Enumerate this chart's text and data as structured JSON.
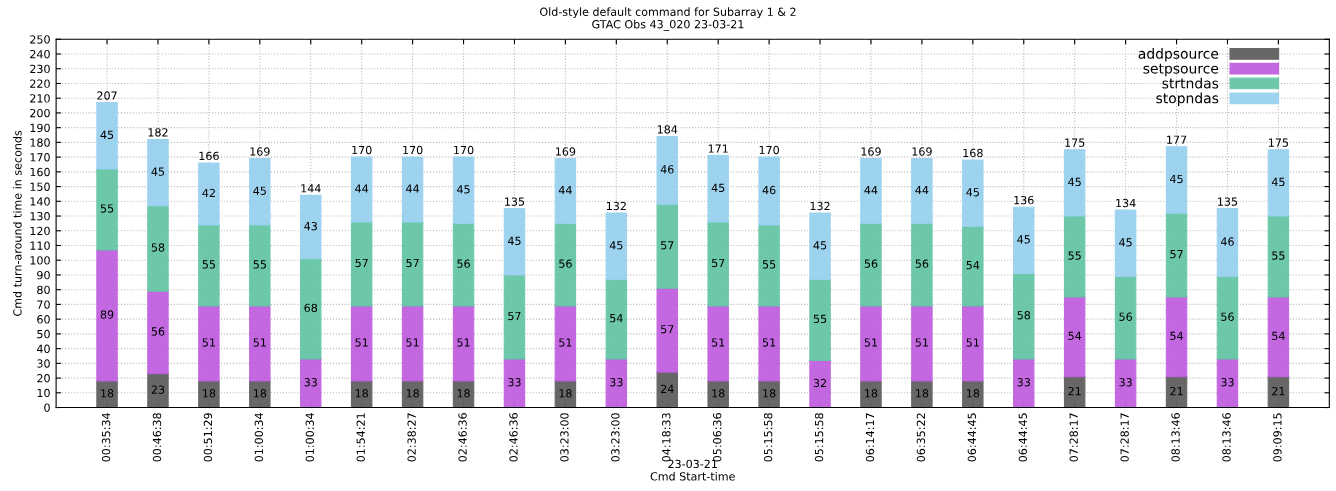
{
  "chart_data": {
    "type": "bar",
    "stacked": true,
    "title": "Old-style default command for Subarray 1 & 2",
    "subtitle": "GTAC Obs 43_020 23-03-21",
    "xlabel": "23-03-21\nCmd Start-time",
    "ylabel": "Cmd turn-around time in seconds",
    "categories": [
      "00:35:34",
      "00:46:38",
      "00:51:29",
      "01:00:34",
      "01:00:34",
      "01:54:21",
      "02:38:27",
      "02:46:36",
      "02:46:36",
      "03:23:00",
      "03:23:00",
      "04:18:33",
      "05:06:36",
      "05:15:58",
      "05:15:58",
      "06:14:17",
      "06:35:22",
      "06:44:45",
      "06:44:45",
      "07:28:17",
      "07:28:17",
      "08:13:46",
      "08:13:46",
      "09:09:15"
    ],
    "series": [
      {
        "name": "addpsource",
        "color": "#5f5f5f",
        "values": [
          18,
          23,
          18,
          18,
          0,
          18,
          18,
          18,
          0,
          18,
          0,
          24,
          18,
          18,
          0,
          18,
          18,
          18,
          0,
          21,
          0,
          21,
          0,
          21
        ],
        "value_labels": [
          "18",
          "23",
          "18",
          "18",
          null,
          "18",
          "18",
          "18",
          null,
          "18",
          null,
          "24",
          "18",
          "18",
          null,
          "18",
          "18",
          "18",
          null,
          "21",
          null,
          "21",
          null,
          "21"
        ]
      },
      {
        "name": "setpsource",
        "color": "#c060e0",
        "values": [
          89,
          56,
          51,
          51,
          33,
          51,
          51,
          51,
          33,
          51,
          33,
          57,
          51,
          51,
          32,
          51,
          51,
          51,
          33,
          54,
          33,
          54,
          33,
          54
        ],
        "value_labels": [
          "89",
          "56",
          "51",
          "51",
          "33",
          "51",
          "51",
          "51",
          "33",
          "51",
          "33",
          "57",
          "51",
          "51",
          "32",
          "51",
          "51",
          "51",
          "33",
          "54",
          "33",
          "54",
          "33",
          "54"
        ]
      },
      {
        "name": "strtndas",
        "color": "#66c6a6",
        "values": [
          55,
          58,
          55,
          55,
          68,
          57,
          57,
          56,
          57,
          56,
          54,
          57,
          57,
          55,
          55,
          56,
          56,
          54,
          58,
          55,
          56,
          57,
          56,
          55
        ],
        "value_labels": [
          "55",
          "58",
          "55",
          "55",
          "68",
          "57",
          "57",
          "56",
          "57",
          "56",
          "54",
          "57",
          "57",
          "55",
          "55",
          "56",
          "56",
          "54",
          "58",
          "55",
          "56",
          "57",
          "56",
          "55"
        ]
      },
      {
        "name": "stopndas",
        "color": "#99d1f0",
        "values": [
          45,
          45,
          42,
          45,
          43,
          44,
          44,
          45,
          45,
          44,
          45,
          46,
          45,
          46,
          45,
          44,
          44,
          45,
          45,
          45,
          45,
          45,
          46,
          45
        ],
        "value_labels": [
          "45",
          "45",
          "42",
          "45",
          "43",
          "44",
          "44",
          "45",
          "45",
          "44",
          "45",
          "46",
          "45",
          "46",
          "45",
          "44",
          "44",
          "45",
          "45",
          "45",
          "45",
          "45",
          "46",
          "45"
        ]
      }
    ],
    "totals": [
      "207",
      "182",
      "166",
      "169",
      "144",
      "170",
      "170",
      "170",
      "135",
      "169",
      "132",
      "184",
      "171",
      "170",
      "132",
      "169",
      "169",
      "168",
      "136",
      "175",
      "134",
      "177",
      "135",
      "175"
    ],
    "ylim": [
      0,
      250
    ],
    "yticks": [
      0,
      10,
      20,
      30,
      40,
      50,
      60,
      70,
      80,
      90,
      100,
      110,
      120,
      130,
      140,
      150,
      160,
      170,
      180,
      190,
      200,
      210,
      220,
      230,
      240,
      250
    ],
    "grid": true,
    "legend": "top right"
  }
}
